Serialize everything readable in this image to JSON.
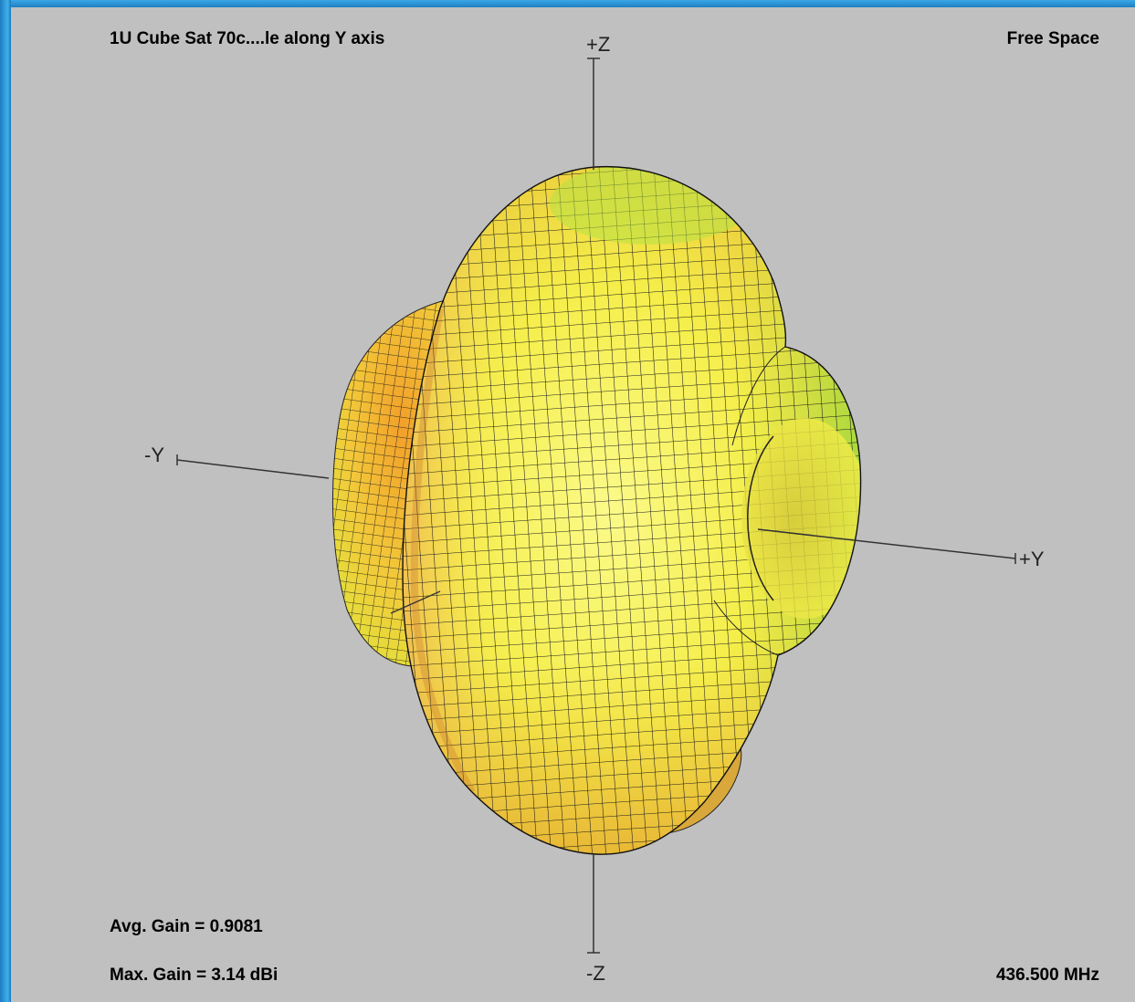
{
  "header": {
    "title": "1U Cube Sat 70c....le along Y axis",
    "environment": "Free Space"
  },
  "axes": {
    "pos_z": "+Z",
    "neg_z": "-Z",
    "pos_y": "+Y",
    "neg_y": "-Y"
  },
  "stats": {
    "avg_gain": "Avg. Gain = 0.9081",
    "max_gain": "Max. Gain = 3.14 dBi"
  },
  "frequency": "436.500 MHz",
  "colors": {
    "background": "#c0c0c0",
    "frame_accent": "#2e9ad8",
    "pattern_yellow": "#f7f24a",
    "pattern_orange": "#f08a1a",
    "pattern_green": "#7ee43a"
  }
}
